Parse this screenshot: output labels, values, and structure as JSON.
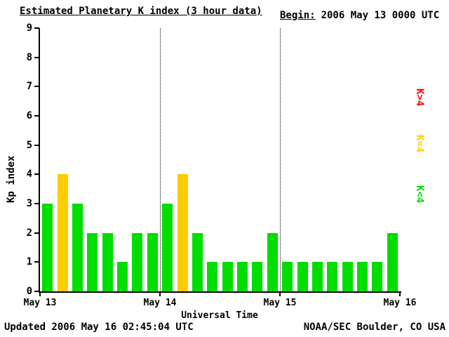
{
  "header": {
    "title": "Estimated Planetary K index (3 hour data)",
    "begin_label": "Begin:",
    "begin_value": "2006 May 13 0000 UTC"
  },
  "footer": {
    "updated": "Updated 2006 May 16 02:45:04 UTC",
    "credit": "NOAA/SEC Boulder, CO USA"
  },
  "chart_data": {
    "type": "bar",
    "title": "Estimated Planetary K index (3 hour data)",
    "xlabel": "Universal Time",
    "ylabel": "Kp index",
    "ylim": [
      0,
      9
    ],
    "yticks": [
      0,
      1,
      2,
      3,
      4,
      5,
      6,
      7,
      8,
      9
    ],
    "xticklabels": [
      "May 13",
      "May 14",
      "May 15",
      "May 16"
    ],
    "begin": "2006 May 13 0000 UTC",
    "bin_hours": 3,
    "bars_per_day": 8,
    "values": [
      3,
      4,
      3,
      2,
      2,
      1,
      2,
      2,
      3,
      4,
      2,
      1,
      1,
      1,
      1,
      2,
      1,
      1,
      1,
      1,
      1,
      1,
      1,
      2
    ],
    "colors": {
      "k_lt_4": "#00dd00",
      "k_eq_4": "#ffcc00",
      "k_gt_4": "#ff0000"
    },
    "color_rule": "green if K<4, yellow if K=4, red if K>4",
    "legend": [
      {
        "label": "K>4",
        "color": "#ff0000"
      },
      {
        "label": "K=4",
        "color": "#ffcc00"
      },
      {
        "label": "K<4",
        "color": "#00dd00"
      }
    ],
    "legend_position": "right",
    "grid": "dotted vertical lines at day boundaries"
  }
}
